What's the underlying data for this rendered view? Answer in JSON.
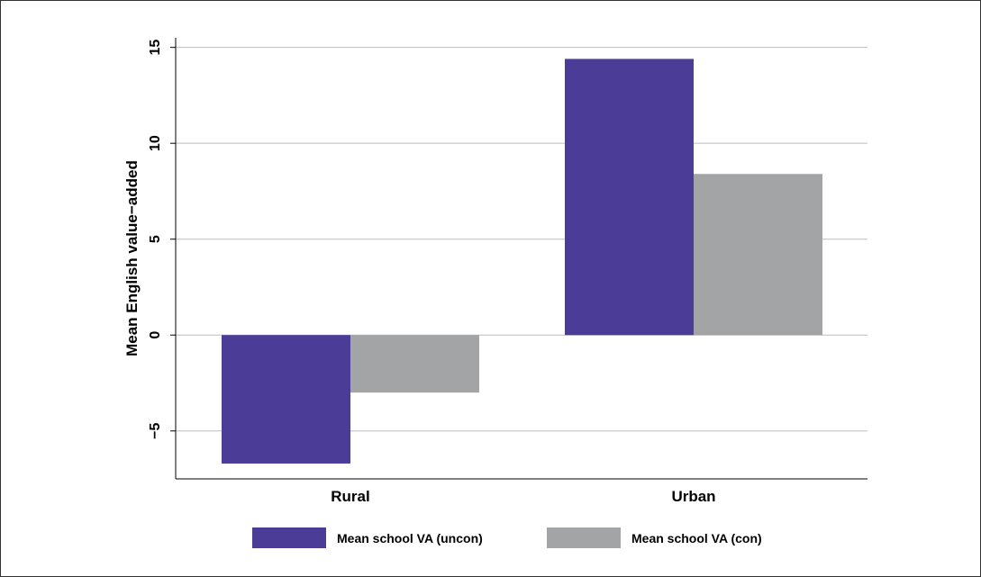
{
  "chart_data": {
    "type": "bar",
    "title": "",
    "xlabel": "",
    "ylabel": "Mean English value−added",
    "categories": [
      "Rural",
      "Urban"
    ],
    "series": [
      {
        "name": "Mean school VA (uncon)",
        "values": [
          -6.7,
          14.4
        ],
        "color": "#4b3c97"
      },
      {
        "name": "Mean school VA (con)",
        "values": [
          -3.0,
          8.4
        ],
        "color": "#a2a4a5"
      }
    ],
    "ylim": [
      -7.5,
      15.5
    ],
    "yticks": [
      -5,
      0,
      5,
      10,
      15
    ],
    "ytick_labels": [
      "−5",
      "0",
      "5",
      "10",
      "15"
    ],
    "grid": true,
    "legend_position": "bottom"
  }
}
